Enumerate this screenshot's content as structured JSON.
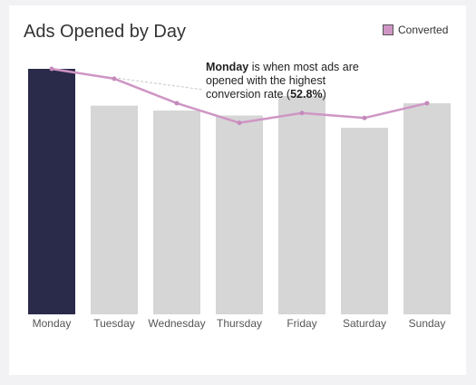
{
  "chart_data": {
    "type": "bar",
    "title": "Ads Opened by Day",
    "categories": [
      "Monday",
      "Tuesday",
      "Wednesday",
      "Thursday",
      "Friday",
      "Saturday",
      "Sunday"
    ],
    "series": [
      {
        "type": "bar",
        "values": [
          100,
          85,
          83,
          81,
          89,
          76,
          86
        ]
      },
      {
        "type": "line",
        "name": "Converted",
        "values": [
          100,
          96,
          86,
          78,
          82,
          80,
          86
        ]
      }
    ],
    "ylim": [
      0,
      100
    ],
    "grid": false,
    "legend": "top-right",
    "highlight_index": 0,
    "annotation": {
      "bold_lead": "Monday",
      "text": " is when most ads are opened with the highest conversion rate (",
      "bold_value": "52.8%",
      "closing": ")"
    }
  },
  "colors": {
    "highlight_bar": "#2a2a4a",
    "bar": "#d6d6d6",
    "line": "#cf96c5",
    "line_point": "#c48abb",
    "background": "#ffffff"
  }
}
